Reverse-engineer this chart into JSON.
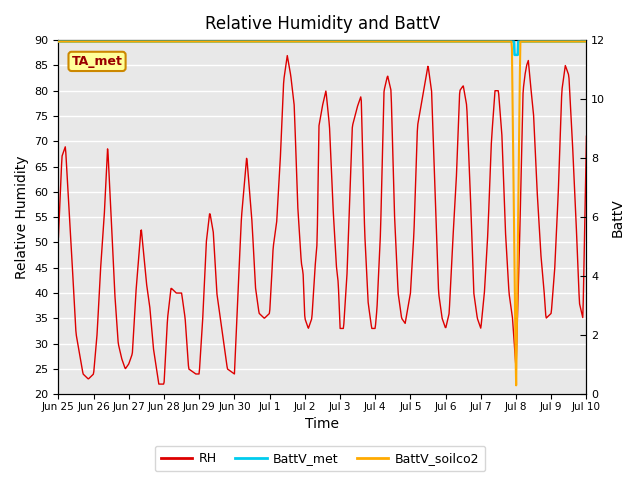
{
  "title": "Relative Humidity and BattV",
  "xlabel": "Time",
  "ylabel_left": "Relative Humidity",
  "ylabel_right": "BattV",
  "ylim_left": [
    20,
    90
  ],
  "ylim_right": [
    0,
    12
  ],
  "plot_bg_color": "#e8e8e8",
  "rh_color": "#dd0000",
  "battv_met_color": "#00ccee",
  "battv_soilco2_color": "#ffaa00",
  "annotation_text": "TA_met",
  "annotation_bg": "#ffff99",
  "annotation_border": "#cc8800",
  "x_tick_labels": [
    "Jun 25",
    "Jun 26",
    "Jun 27",
    "Jun 28",
    "Jun 29",
    "Jun 30",
    "Jul 1",
    "Jul 2",
    "Jul 3",
    "Jul 4",
    "Jul 5",
    "Jul 6",
    "Jul 7",
    "Jul 8",
    "Jul 9",
    "Jul 10"
  ],
  "rh_yticks": [
    20,
    25,
    30,
    35,
    40,
    45,
    50,
    55,
    60,
    65,
    70,
    75,
    80,
    85,
    90
  ],
  "batt_yticks": [
    0,
    2,
    4,
    6,
    8,
    10,
    12
  ],
  "n_days": 15,
  "battv_soilco2_spike_day": 13.0
}
